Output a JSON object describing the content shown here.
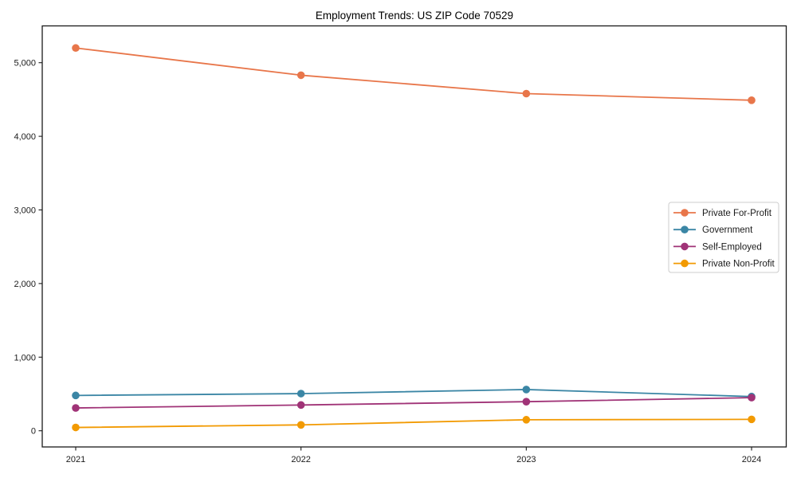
{
  "chart_data": {
    "type": "line",
    "title": "Employment Trends: US ZIP Code 70529",
    "x_labels": [
      "2021",
      "2022",
      "2023",
      "2024"
    ],
    "series": [
      {
        "name": "Private For-Profit",
        "color": "#E8764A",
        "values": [
          5200,
          4830,
          4580,
          4490
        ]
      },
      {
        "name": "Government",
        "color": "#3B86A5",
        "values": [
          480,
          505,
          560,
          465
        ]
      },
      {
        "name": "Self-Employed",
        "color": "#A03377",
        "values": [
          310,
          350,
          395,
          450
        ]
      },
      {
        "name": "Private Non-Profit",
        "color": "#F29A02",
        "values": [
          45,
          80,
          150,
          155
        ]
      }
    ],
    "y_ticks": [
      0,
      1000,
      2000,
      3000,
      4000,
      5000
    ],
    "y_tick_labels": [
      "0",
      "1,000",
      "2,000",
      "3,000",
      "4,000",
      "5,000"
    ],
    "ylim": [
      -220,
      5510
    ],
    "grid": false,
    "legend_position": "center-right",
    "axis_color": "#1a1a1a",
    "legend_border_color": "#cccccc",
    "background_color": "#ffffff"
  }
}
